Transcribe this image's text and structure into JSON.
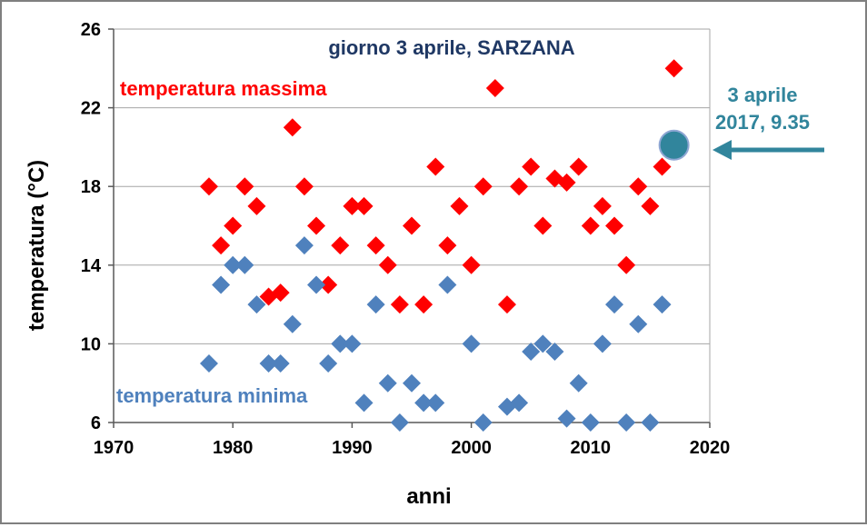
{
  "chart_data": {
    "type": "scatter",
    "title": "giorno 3 aprile, SARZANA",
    "xlabel": "anni",
    "ylabel": "temperatura (°C)",
    "xlim": [
      1970,
      2020
    ],
    "ylim": [
      6,
      26
    ],
    "xticks": [
      "1970",
      "1980",
      "1990",
      "2000",
      "2010",
      "2020"
    ],
    "yticks": [
      "6",
      "10",
      "14",
      "18",
      "22",
      "26"
    ],
    "x_tick_values": [
      1970,
      1980,
      1990,
      2000,
      2010,
      2020
    ],
    "y_tick_values": [
      6,
      10,
      14,
      18,
      22,
      26
    ],
    "grid": "horizontal",
    "series": [
      {
        "name": "temperatura massima",
        "color": "#ff0000",
        "marker": "diamond",
        "points": [
          [
            1978,
            18
          ],
          [
            1979,
            15
          ],
          [
            1980,
            16
          ],
          [
            1981,
            18
          ],
          [
            1982,
            17
          ],
          [
            1983,
            12.4
          ],
          [
            1984,
            12.6
          ],
          [
            1985,
            21
          ],
          [
            1986,
            18
          ],
          [
            1987,
            16
          ],
          [
            1988,
            13
          ],
          [
            1989,
            15
          ],
          [
            1990,
            17
          ],
          [
            1991,
            17
          ],
          [
            1992,
            15
          ],
          [
            1993,
            14
          ],
          [
            1994,
            12
          ],
          [
            1995,
            16
          ],
          [
            1996,
            12
          ],
          [
            1997,
            19
          ],
          [
            1998,
            15
          ],
          [
            1999,
            17
          ],
          [
            2000,
            14
          ],
          [
            2001,
            18
          ],
          [
            2002,
            23
          ],
          [
            2003,
            12
          ],
          [
            2004,
            18
          ],
          [
            2005,
            19
          ],
          [
            2006,
            16
          ],
          [
            2007,
            18.4
          ],
          [
            2008,
            18.2
          ],
          [
            2009,
            19
          ],
          [
            2010,
            16
          ],
          [
            2011,
            17
          ],
          [
            2012,
            16
          ],
          [
            2013,
            14
          ],
          [
            2014,
            18
          ],
          [
            2015,
            17
          ],
          [
            2016,
            19
          ],
          [
            2017,
            24
          ]
        ]
      },
      {
        "name": "temperatura minima",
        "color": "#4f81bd",
        "marker": "diamond",
        "points": [
          [
            1978,
            9
          ],
          [
            1979,
            13
          ],
          [
            1980,
            14
          ],
          [
            1981,
            14
          ],
          [
            1982,
            12
          ],
          [
            1983,
            9
          ],
          [
            1984,
            9
          ],
          [
            1985,
            11
          ],
          [
            1986,
            15
          ],
          [
            1987,
            13
          ],
          [
            1988,
            9
          ],
          [
            1989,
            10
          ],
          [
            1990,
            10
          ],
          [
            1991,
            7
          ],
          [
            1992,
            12
          ],
          [
            1993,
            8
          ],
          [
            1994,
            6
          ],
          [
            1995,
            8
          ],
          [
            1996,
            7
          ],
          [
            1997,
            7
          ],
          [
            1998,
            13
          ],
          [
            2000,
            10
          ],
          [
            2001,
            6
          ],
          [
            2003,
            6.8
          ],
          [
            2004,
            7
          ],
          [
            2005,
            9.6
          ],
          [
            2006,
            10
          ],
          [
            2007,
            9.6
          ],
          [
            2008,
            6.2
          ],
          [
            2009,
            8
          ],
          [
            2010,
            6
          ],
          [
            2011,
            10
          ],
          [
            2012,
            12
          ],
          [
            2013,
            6
          ],
          [
            2014,
            11
          ],
          [
            2015,
            6
          ],
          [
            2016,
            12
          ]
        ]
      }
    ],
    "highlight": {
      "x": 2017,
      "y": 20.1,
      "fill": "#31859c",
      "label_lines": [
        "3 aprile",
        "2017, 9.35"
      ],
      "label_color": "#31859c"
    },
    "annotations": {
      "max_label": "temperatura massima",
      "min_label": "temperatura minima"
    },
    "colors": {
      "title": "#1f3864",
      "grid": "#a6a6a6",
      "axis": "#595959",
      "arrow": "#31859c"
    }
  }
}
